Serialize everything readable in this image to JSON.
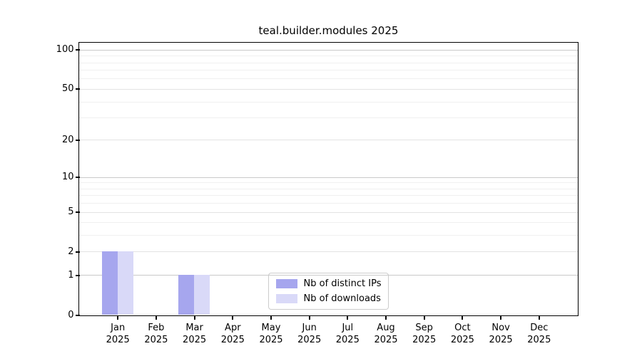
{
  "chart_data": {
    "type": "bar",
    "title": "teal.builder.modules 2025",
    "scale": "log10(1+x)",
    "year": "2025",
    "months": [
      "Jan",
      "Feb",
      "Mar",
      "Apr",
      "May",
      "Jun",
      "Jul",
      "Aug",
      "Sep",
      "Oct",
      "Nov",
      "Dec"
    ],
    "categories": [
      "Jan 2025",
      "Feb 2025",
      "Mar 2025",
      "Apr 2025",
      "May 2025",
      "Jun 2025",
      "Jul 2025",
      "Aug 2025",
      "Sep 2025",
      "Oct 2025",
      "Nov 2025",
      "Dec 2025"
    ],
    "series": [
      {
        "name": "Nb of distinct IPs",
        "color": "#a6a6ee",
        "values": [
          2,
          0,
          1,
          0,
          0,
          0,
          0,
          0,
          0,
          0,
          0,
          0
        ]
      },
      {
        "name": "Nb of downloads",
        "color": "#d9d9f8",
        "values": [
          2,
          0,
          1,
          0,
          0,
          0,
          0,
          0,
          0,
          0,
          0,
          0
        ]
      }
    ],
    "y_ticks": [
      {
        "value": 0,
        "label": "0",
        "kind": "major"
      },
      {
        "value": 1,
        "label": "1",
        "kind": "major"
      },
      {
        "value": 2,
        "label": "2",
        "kind": "sub"
      },
      {
        "value": 5,
        "label": "5",
        "kind": "sub"
      },
      {
        "value": 10,
        "label": "10",
        "kind": "major"
      },
      {
        "value": 20,
        "label": "20",
        "kind": "sub"
      },
      {
        "value": 50,
        "label": "50",
        "kind": "sub"
      },
      {
        "value": 100,
        "label": "100",
        "kind": "major"
      }
    ],
    "y_minor_gridlines": [
      3,
      4,
      6,
      7,
      8,
      9,
      30,
      40,
      60,
      70,
      80,
      90
    ],
    "ylim": [
      0,
      113
    ],
    "grid": true,
    "legend_position": "lower center inside"
  }
}
